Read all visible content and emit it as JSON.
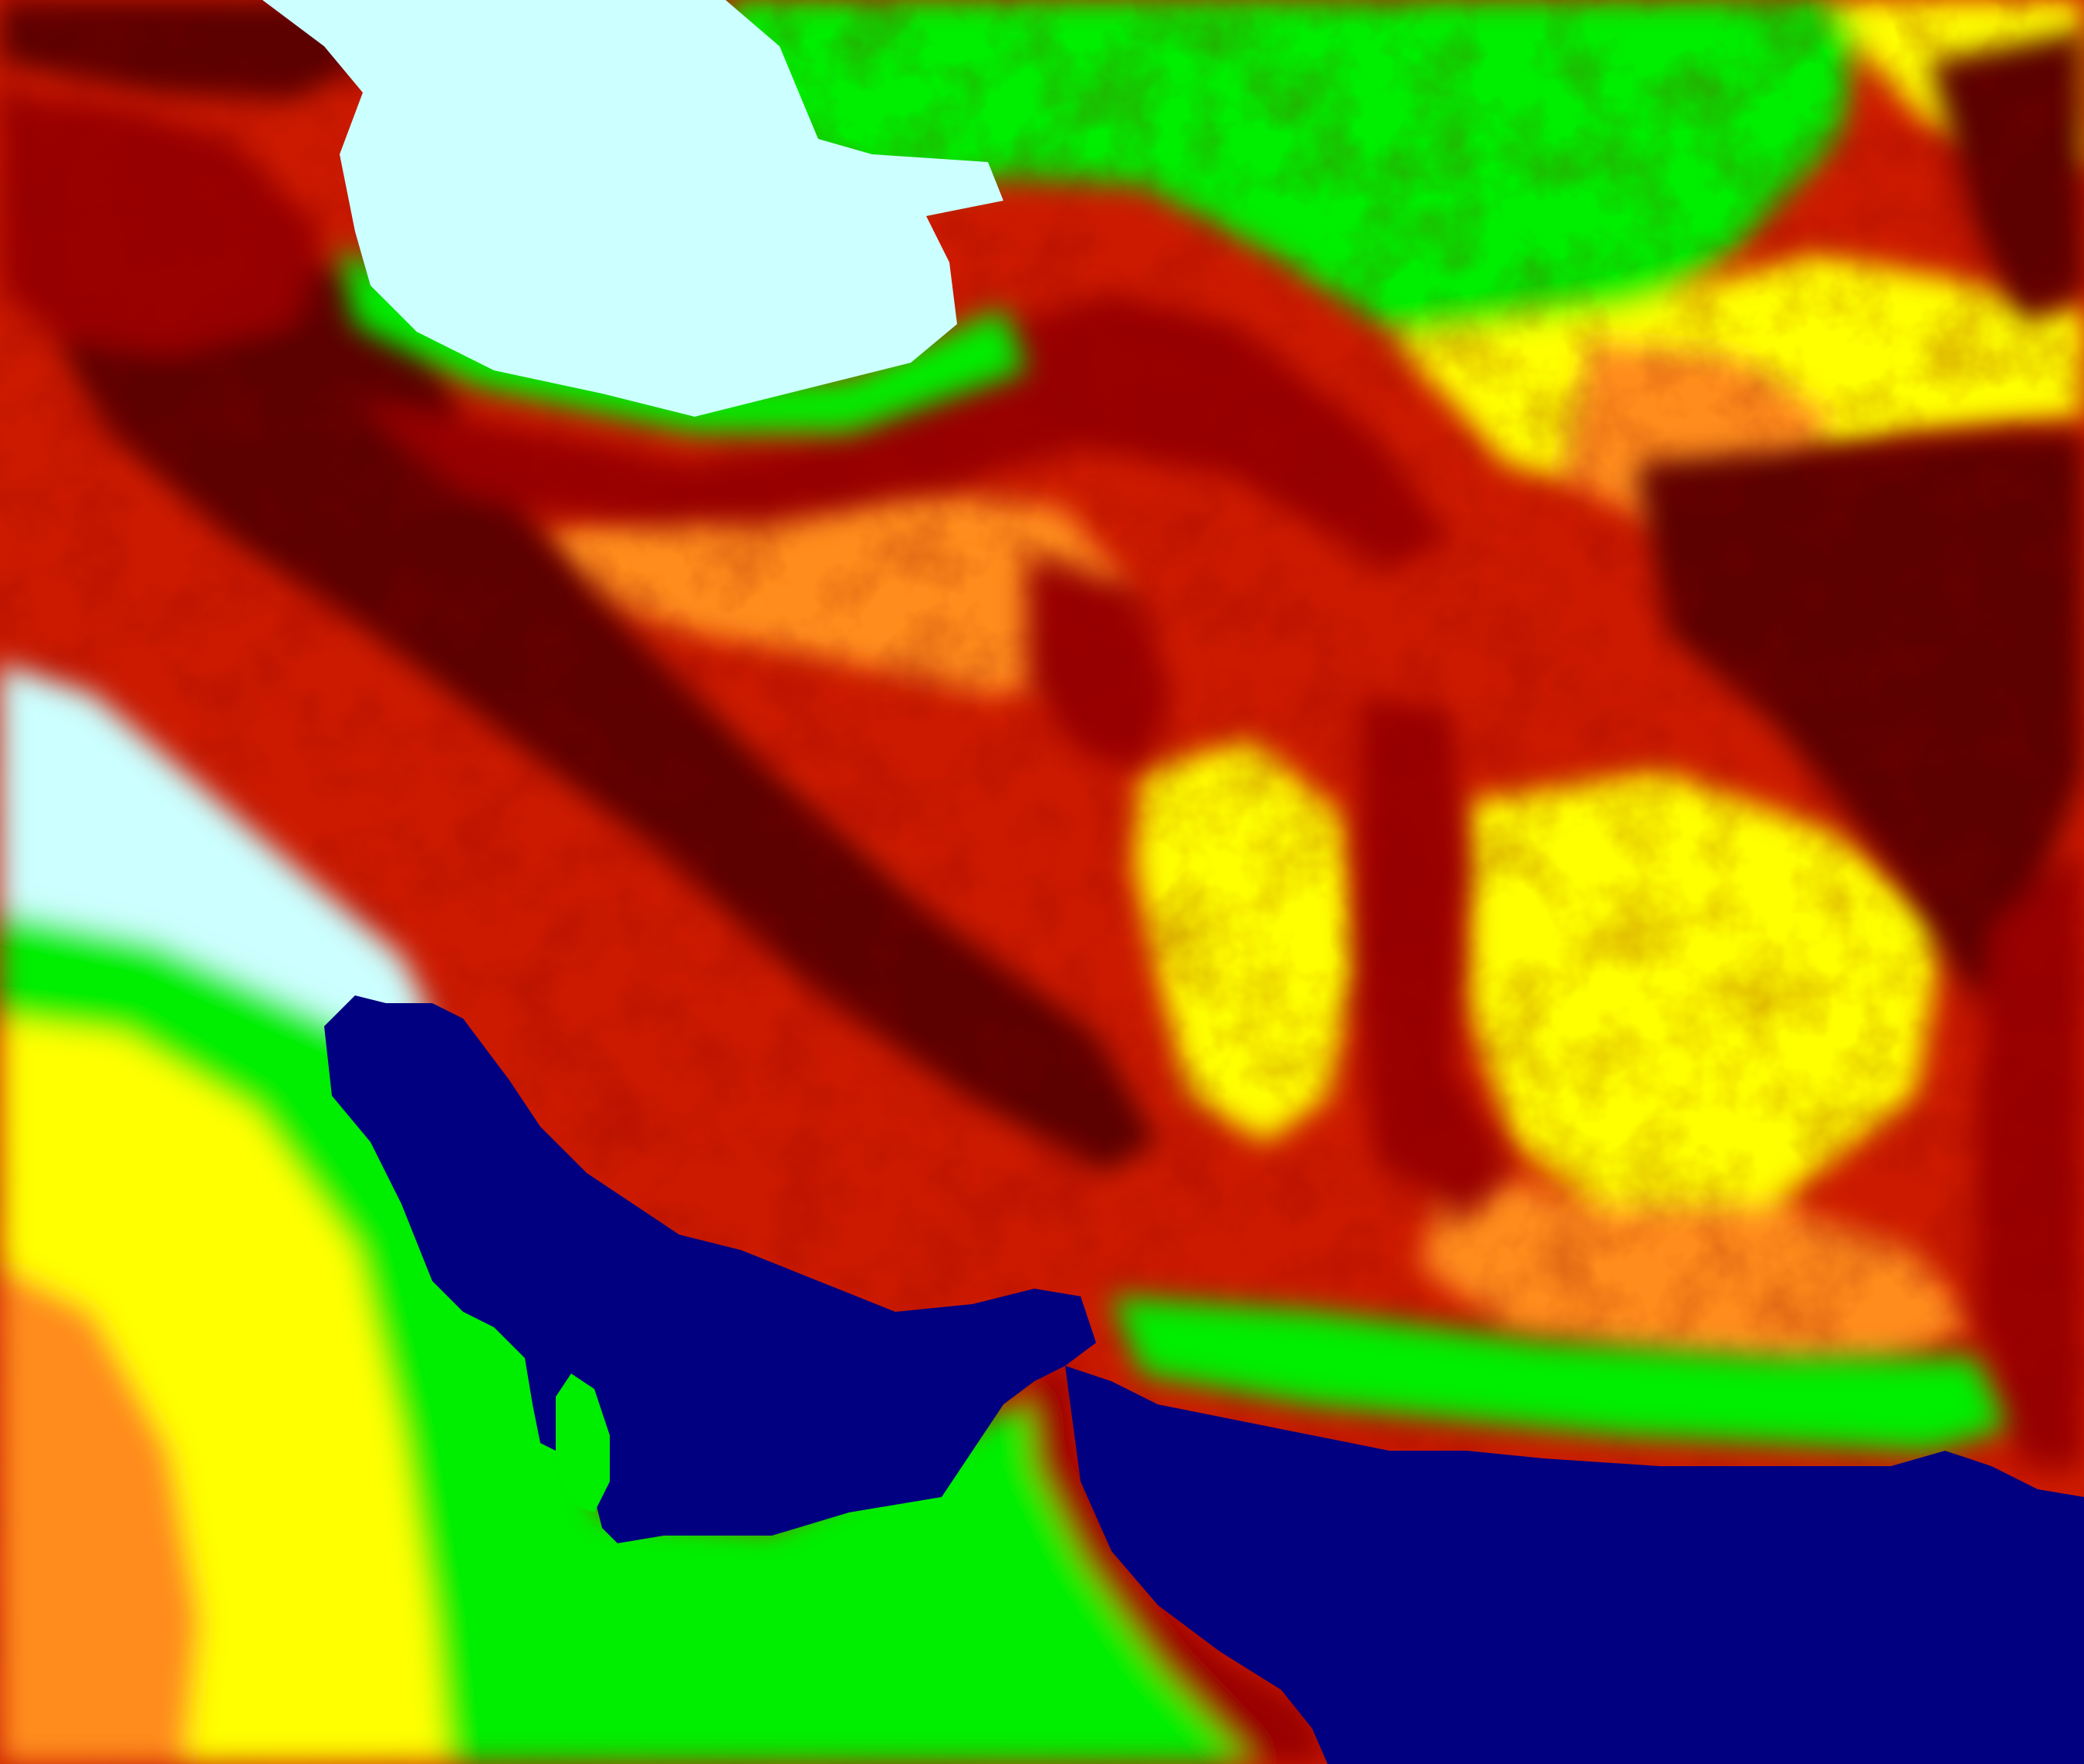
{
  "map": {
    "type": "elevation-heatmap",
    "has_text_labels": false,
    "colors": {
      "sea": "#000080",
      "lowland": "#ccffff",
      "low_elevation": "#00ee00",
      "mid_low": "#ffff00",
      "mid": "#ff8c1a",
      "mid_high": "#cc1a00",
      "high": "#990000",
      "highest": "#5c0000"
    },
    "regions": [
      {
        "name": "caspian-sea",
        "class": "lowland"
      },
      {
        "name": "persian-gulf",
        "class": "sea"
      },
      {
        "name": "gulf-of-oman",
        "class": "sea"
      },
      {
        "name": "mesopotamian-plain",
        "class": "lowland"
      },
      {
        "name": "arabian-peninsula",
        "class": "mid_low"
      },
      {
        "name": "qatar-peninsula",
        "class": "low_elevation"
      },
      {
        "name": "musandam-oman-mountains",
        "class": "high"
      },
      {
        "name": "turan-lowland",
        "class": "low_elevation"
      },
      {
        "name": "karakum-plateau",
        "class": "mid_low"
      },
      {
        "name": "zagros-mountains",
        "class": "highest"
      },
      {
        "name": "alborz-mountains",
        "class": "high"
      },
      {
        "name": "iranian-plateau",
        "class": "mid"
      },
      {
        "name": "dasht-e-lut",
        "class": "mid_low"
      },
      {
        "name": "sistan-basin",
        "class": "mid_low"
      },
      {
        "name": "hindu-kush",
        "class": "highest"
      },
      {
        "name": "makran-coast",
        "class": "low_elevation"
      }
    ]
  }
}
